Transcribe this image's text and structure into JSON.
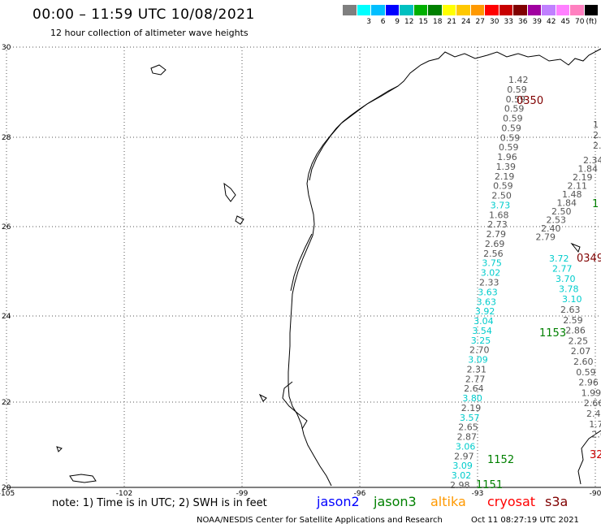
{
  "header": {
    "title": "00:00 – 11:59 UTC 10/08/2021",
    "subtitle": "12 hour collection of altimeter wave heights"
  },
  "colorbar": {
    "colors": [
      "#7f7f7f",
      "#00ffff",
      "#00bfff",
      "#0000ff",
      "#00c0c0",
      "#00b000",
      "#008000",
      "#ffff00",
      "#ffc800",
      "#ff9900",
      "#ff0000",
      "#c80000",
      "#800000",
      "#a000a0",
      "#c080ff",
      "#ff80ff",
      "#ff80c0",
      "#000000"
    ],
    "labels": [
      "",
      "3",
      "6",
      "9",
      "12",
      "15",
      "18",
      "21",
      "24",
      "27",
      "30",
      "33",
      "36",
      "39",
      "42",
      "45",
      "70",
      "(ft)"
    ]
  },
  "map": {
    "lat_labels": [
      "30",
      "28",
      "26",
      "24",
      "22",
      "20"
    ],
    "lon_labels": [
      "-105",
      "-102",
      "-99",
      "-96",
      "-93",
      "-90"
    ]
  },
  "tracks": [
    {
      "color": "#555555",
      "values": [
        "1.42",
        "0.59",
        "0.59",
        "0.59",
        "0.59",
        "0.59",
        "0.59",
        "0.59",
        "1.96",
        "1.39",
        "2.19",
        "0.59",
        "2.50"
      ]
    },
    {
      "color": "#00cccc",
      "values": [
        "3.73"
      ]
    },
    {
      "color": "#555555",
      "values": [
        "1.68",
        "2.73",
        "2.79",
        "2.69",
        "2.56"
      ]
    },
    {
      "color": "#00cccc",
      "values": [
        "3.75",
        "3.02"
      ]
    },
    {
      "color": "#555555",
      "values": [
        "2.33"
      ]
    },
    {
      "color": "#00cccc",
      "values": [
        "3.63",
        "3.63",
        "3.92",
        "3.04",
        "3.54",
        "3.25"
      ]
    },
    {
      "color": "#555555",
      "values": [
        "2.70"
      ]
    },
    {
      "color": "#00cccc",
      "values": [
        "3.09"
      ]
    },
    {
      "color": "#555555",
      "values": [
        "2.31",
        "2.77",
        "2.64"
      ]
    },
    {
      "color": "#00cccc",
      "values": [
        "3.80"
      ]
    },
    {
      "color": "#555555",
      "values": [
        "2.19"
      ]
    },
    {
      "color": "#00cccc",
      "values": [
        "3.57"
      ]
    },
    {
      "color": "#555555",
      "values": [
        "2.65",
        "2.87"
      ]
    },
    {
      "color": "#00cccc",
      "values": [
        "3.06"
      ]
    },
    {
      "color": "#555555",
      "values": [
        "2.97"
      ]
    },
    {
      "color": "#00cccc",
      "values": [
        "3.09",
        "3.02"
      ]
    },
    {
      "color": "#555555",
      "values": [
        "2.98"
      ]
    }
  ],
  "track2": {
    "values": [
      "2.34",
      "1.84",
      "2.19",
      "2.11",
      "1.48",
      "1.84",
      "2.50",
      "2.53",
      "2.40",
      "2.79"
    ],
    "cyan": [
      "3.72",
      "2.77",
      "3.70",
      "3.78",
      "3.10"
    ],
    "gray_tail": [
      "2.63",
      "2.59",
      "2.86",
      "2.25",
      "2.07",
      "2.60",
      "0.59",
      "2.96",
      "1.99",
      "2.66",
      "2.47",
      "1.7",
      "2.6"
    ],
    "right_edge": [
      "1",
      "2.5",
      "2.4"
    ]
  },
  "time_labels": [
    {
      "text": "0350",
      "color": "#800000"
    },
    {
      "text": "0349",
      "color": "#800000"
    },
    {
      "text": "1153",
      "color": "#008000"
    },
    {
      "text": "1152",
      "color": "#008000"
    },
    {
      "text": "1151",
      "color": "#008000"
    },
    {
      "text": "1",
      "color": "#008000"
    },
    {
      "text": "32",
      "color": "#cc0000"
    }
  ],
  "footer": {
    "note": "note:  1) Time is in UTC;  2) SWH is in feet",
    "satellites": [
      {
        "name": "jason2",
        "color": "#0000ff"
      },
      {
        "name": "jason3",
        "color": "#008000"
      },
      {
        "name": "altika",
        "color": "#ff9900"
      },
      {
        "name": "cryosat",
        "color": "#ff0000"
      },
      {
        "name": "s3a",
        "color": "#800000"
      }
    ],
    "credit": "NOAA/NESDIS Center for Satellite Applications and Research",
    "timestamp": "Oct 11 08:27:19 UTC 2021"
  }
}
